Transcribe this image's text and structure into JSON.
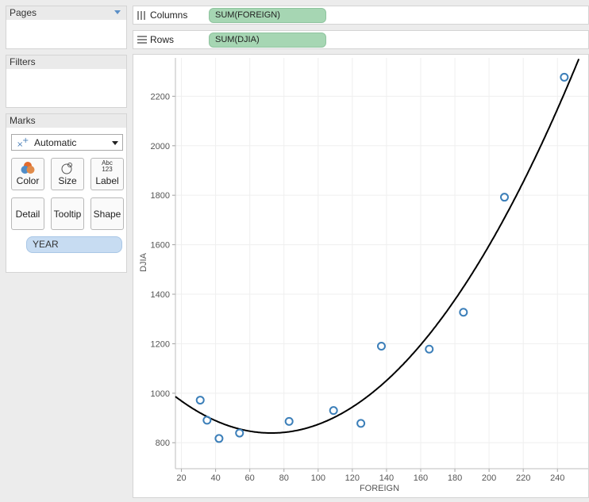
{
  "sidebar": {
    "pages": {
      "title": "Pages"
    },
    "filters": {
      "title": "Filters"
    },
    "marks": {
      "title": "Marks",
      "mark_type": "Automatic",
      "buttons": {
        "color": "Color",
        "size": "Size",
        "label": "Label",
        "detail": "Detail",
        "tooltip": "Tooltip",
        "shape": "Shape"
      },
      "label_icon_top": "Abc",
      "label_icon_bottom": "123",
      "pills": [
        "YEAR"
      ]
    }
  },
  "shelves": {
    "columns": {
      "label": "Columns",
      "pill": "SUM(FOREIGN)"
    },
    "rows": {
      "label": "Rows",
      "pill": "SUM(DJIA)"
    }
  },
  "colors": {
    "marker": "#3c7fb9",
    "trend": "#000000",
    "column_pill": "#a6d6b3",
    "detail_pill": "#c7dcf2"
  },
  "chart_data": {
    "type": "scatter",
    "title": "",
    "xlabel": "FOREIGN",
    "ylabel": "DJIA",
    "xlim": [
      16.5,
      258
    ],
    "ylim": [
      695,
      2355
    ],
    "xticks": [
      20,
      40,
      60,
      80,
      100,
      120,
      140,
      160,
      180,
      200,
      220,
      240
    ],
    "yticks": [
      800,
      1000,
      1200,
      1400,
      1600,
      1800,
      2000,
      2200
    ],
    "grid": true,
    "marker": "open-circle",
    "points": [
      {
        "x": 31,
        "y": 972
      },
      {
        "x": 35,
        "y": 891
      },
      {
        "x": 42,
        "y": 817
      },
      {
        "x": 54,
        "y": 839
      },
      {
        "x": 83,
        "y": 886
      },
      {
        "x": 109,
        "y": 930
      },
      {
        "x": 125,
        "y": 878
      },
      {
        "x": 137,
        "y": 1190
      },
      {
        "x": 165,
        "y": 1178
      },
      {
        "x": 185,
        "y": 1327
      },
      {
        "x": 209,
        "y": 1792
      },
      {
        "x": 244,
        "y": 2277
      }
    ],
    "trend_line": {
      "type": "polynomial",
      "degree": 2,
      "coefficients": [
        1085.8,
        -6.79,
        0.04673
      ]
    }
  }
}
